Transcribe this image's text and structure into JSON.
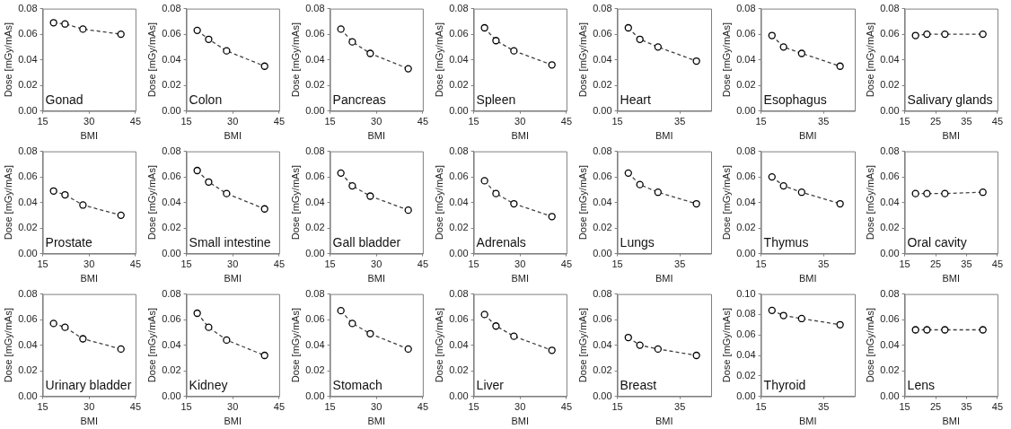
{
  "chart_data": [
    {
      "type": "line",
      "annotations": [
        "Gonad"
      ],
      "xlabel": "BMI",
      "ylabel": "Dose [mGy/mAs]",
      "x": [
        18.5,
        22.2,
        28,
        40.3
      ],
      "values": [
        0.069,
        0.068,
        0.064,
        0.06
      ],
      "color": "#404040",
      "xlim": [
        15,
        45
      ],
      "xticks": [
        15,
        30,
        45
      ],
      "ylim": [
        0,
        0.08
      ],
      "yticks": [
        {
          "value": 0,
          "label": "0.00"
        },
        {
          "value": 0.02,
          "label": "0.02"
        },
        {
          "value": 0.04,
          "label": "0.04"
        },
        {
          "value": 0.06,
          "label": "0.06"
        },
        {
          "value": 0.08,
          "label": "0.08"
        }
      ],
      "marker": "circle",
      "line_style": "dashed",
      "grid": false,
      "legend": false
    },
    {
      "type": "line",
      "annotations": [
        "Colon"
      ],
      "xlabel": "BMI",
      "ylabel": "Dose [mGy/mAs]",
      "x": [
        18.5,
        22.2,
        28,
        40.3
      ],
      "values": [
        0.063,
        0.056,
        0.047,
        0.035
      ],
      "color": "#404040",
      "xlim": [
        15,
        45
      ],
      "xticks": [
        15,
        30,
        45
      ],
      "ylim": [
        0,
        0.08
      ],
      "yticks": [
        {
          "value": 0,
          "label": "0.00"
        },
        {
          "value": 0.02,
          "label": "0.02"
        },
        {
          "value": 0.04,
          "label": "0.04"
        },
        {
          "value": 0.06,
          "label": "0.06"
        },
        {
          "value": 0.08,
          "label": "0.08"
        }
      ],
      "marker": "circle",
      "line_style": "dashed",
      "grid": false,
      "legend": false
    },
    {
      "type": "line",
      "annotations": [
        "Pancreas"
      ],
      "xlabel": "BMI",
      "ylabel": "Dose [mGy/mAs]",
      "x": [
        18.5,
        22.2,
        28,
        40.3
      ],
      "values": [
        0.064,
        0.054,
        0.045,
        0.033
      ],
      "color": "#404040",
      "xlim": [
        15,
        45
      ],
      "xticks": [
        15,
        30,
        45
      ],
      "ylim": [
        0,
        0.08
      ],
      "yticks": [
        {
          "value": 0,
          "label": "0.00"
        },
        {
          "value": 0.02,
          "label": "0.02"
        },
        {
          "value": 0.04,
          "label": "0.04"
        },
        {
          "value": 0.06,
          "label": "0.06"
        },
        {
          "value": 0.08,
          "label": "0.08"
        }
      ],
      "marker": "circle",
      "line_style": "dashed",
      "grid": false,
      "legend": false
    },
    {
      "type": "line",
      "annotations": [
        "Spleen"
      ],
      "xlabel": "BMI",
      "ylabel": "Dose [mGy/mAs]",
      "x": [
        18.5,
        22.2,
        28,
        40.3
      ],
      "values": [
        0.065,
        0.055,
        0.047,
        0.036
      ],
      "color": "#404040",
      "xlim": [
        15,
        45
      ],
      "xticks": [
        15,
        30,
        45
      ],
      "ylim": [
        0,
        0.08
      ],
      "yticks": [
        {
          "value": 0,
          "label": "0.00"
        },
        {
          "value": 0.02,
          "label": "0.02"
        },
        {
          "value": 0.04,
          "label": "0.04"
        },
        {
          "value": 0.06,
          "label": "0.06"
        },
        {
          "value": 0.08,
          "label": "0.08"
        }
      ],
      "marker": "circle",
      "line_style": "dashed",
      "grid": false,
      "legend": false
    },
    {
      "type": "line",
      "annotations": [
        "Heart"
      ],
      "xlabel": "BMI",
      "ylabel": "Dose [mGy/mAs]",
      "x": [
        18.5,
        22.2,
        28,
        40.3
      ],
      "values": [
        0.065,
        0.056,
        0.05,
        0.039
      ],
      "color": "#404040",
      "xlim": [
        15,
        45
      ],
      "xticks": [
        15,
        35
      ],
      "ylim": [
        0,
        0.08
      ],
      "yticks": [
        {
          "value": 0,
          "label": "0.00"
        },
        {
          "value": 0.02,
          "label": "0.02"
        },
        {
          "value": 0.04,
          "label": "0.04"
        },
        {
          "value": 0.06,
          "label": "0.06"
        },
        {
          "value": 0.08,
          "label": "0.08"
        }
      ],
      "marker": "circle",
      "line_style": "dashed",
      "grid": false,
      "legend": false
    },
    {
      "type": "line",
      "annotations": [
        "Esophagus"
      ],
      "xlabel": "BMI",
      "ylabel": "Dose [mGy/mAs]",
      "x": [
        18.5,
        22.2,
        28,
        40.3
      ],
      "values": [
        0.059,
        0.05,
        0.045,
        0.035
      ],
      "color": "#404040",
      "xlim": [
        15,
        45
      ],
      "xticks": [
        15,
        35
      ],
      "ylim": [
        0,
        0.08
      ],
      "yticks": [
        {
          "value": 0,
          "label": "0.00"
        },
        {
          "value": 0.02,
          "label": "0.02"
        },
        {
          "value": 0.04,
          "label": "0.04"
        },
        {
          "value": 0.06,
          "label": "0.06"
        },
        {
          "value": 0.08,
          "label": "0.08"
        }
      ],
      "marker": "circle",
      "line_style": "dashed",
      "grid": false,
      "legend": false
    },
    {
      "type": "line",
      "annotations": [
        "Salivary glands"
      ],
      "xlabel": "BMI",
      "ylabel": "Dose [mGy/mAs]",
      "x": [
        18.5,
        22.2,
        28,
        40.3
      ],
      "values": [
        0.059,
        0.06,
        0.06,
        0.06
      ],
      "color": "#404040",
      "xlim": [
        15,
        45
      ],
      "xticks": [
        15,
        25,
        35,
        45
      ],
      "ylim": [
        0,
        0.08
      ],
      "yticks": [
        {
          "value": 0,
          "label": "0.00"
        },
        {
          "value": 0.02,
          "label": "0.02"
        },
        {
          "value": 0.04,
          "label": "0.04"
        },
        {
          "value": 0.06,
          "label": "0.06"
        },
        {
          "value": 0.08,
          "label": "0.08"
        }
      ],
      "marker": "circle",
      "line_style": "dashed",
      "grid": false,
      "legend": false
    },
    {
      "type": "line",
      "annotations": [
        "Prostate"
      ],
      "xlabel": "BMI",
      "ylabel": "Dose [mGy/mAs]",
      "x": [
        18.5,
        22.2,
        28,
        40.3
      ],
      "values": [
        0.049,
        0.046,
        0.038,
        0.03
      ],
      "color": "#404040",
      "xlim": [
        15,
        45
      ],
      "xticks": [
        15,
        30,
        45
      ],
      "ylim": [
        0,
        0.08
      ],
      "yticks": [
        {
          "value": 0,
          "label": "0.00"
        },
        {
          "value": 0.02,
          "label": "0.02"
        },
        {
          "value": 0.04,
          "label": "0.04"
        },
        {
          "value": 0.06,
          "label": "0.06"
        },
        {
          "value": 0.08,
          "label": "0.08"
        }
      ],
      "marker": "circle",
      "line_style": "dashed",
      "grid": false,
      "legend": false
    },
    {
      "type": "line",
      "annotations": [
        "Small intestine"
      ],
      "xlabel": "BMI",
      "ylabel": "Dose [mGy/mAs]",
      "x": [
        18.5,
        22.2,
        28,
        40.3
      ],
      "values": [
        0.065,
        0.056,
        0.047,
        0.035
      ],
      "color": "#404040",
      "xlim": [
        15,
        45
      ],
      "xticks": [
        15,
        30,
        45
      ],
      "ylim": [
        0,
        0.08
      ],
      "yticks": [
        {
          "value": 0,
          "label": "0.00"
        },
        {
          "value": 0.02,
          "label": "0.02"
        },
        {
          "value": 0.04,
          "label": "0.04"
        },
        {
          "value": 0.06,
          "label": "0.06"
        },
        {
          "value": 0.08,
          "label": "0.08"
        }
      ],
      "marker": "circle",
      "line_style": "dashed",
      "grid": false,
      "legend": false
    },
    {
      "type": "line",
      "annotations": [
        "Gall bladder"
      ],
      "xlabel": "BMI",
      "ylabel": "Dose [mGy/mAs]",
      "x": [
        18.5,
        22.2,
        28,
        40.3
      ],
      "values": [
        0.063,
        0.053,
        0.045,
        0.034
      ],
      "color": "#404040",
      "xlim": [
        15,
        45
      ],
      "xticks": [
        15,
        30,
        45
      ],
      "ylim": [
        0,
        0.08
      ],
      "yticks": [
        {
          "value": 0,
          "label": "0.00"
        },
        {
          "value": 0.02,
          "label": "0.02"
        },
        {
          "value": 0.04,
          "label": "0.04"
        },
        {
          "value": 0.06,
          "label": "0.06"
        },
        {
          "value": 0.08,
          "label": "0.08"
        }
      ],
      "marker": "circle",
      "line_style": "dashed",
      "grid": false,
      "legend": false
    },
    {
      "type": "line",
      "annotations": [
        "Adrenals"
      ],
      "xlabel": "BMI",
      "ylabel": "Dose [mGy/mAs]",
      "x": [
        18.5,
        22.2,
        28,
        40.3
      ],
      "values": [
        0.057,
        0.047,
        0.039,
        0.029
      ],
      "color": "#404040",
      "xlim": [
        15,
        45
      ],
      "xticks": [
        15,
        30,
        45
      ],
      "ylim": [
        0,
        0.08
      ],
      "yticks": [
        {
          "value": 0,
          "label": "0.00"
        },
        {
          "value": 0.02,
          "label": "0.02"
        },
        {
          "value": 0.04,
          "label": "0.04"
        },
        {
          "value": 0.06,
          "label": "0.06"
        },
        {
          "value": 0.08,
          "label": "0.08"
        }
      ],
      "marker": "circle",
      "line_style": "dashed",
      "grid": false,
      "legend": false
    },
    {
      "type": "line",
      "annotations": [
        "Lungs"
      ],
      "xlabel": "BMI",
      "ylabel": "Dose [mGy/mAs]",
      "x": [
        18.5,
        22.2,
        28,
        40.3
      ],
      "values": [
        0.063,
        0.054,
        0.048,
        0.039
      ],
      "color": "#404040",
      "xlim": [
        15,
        45
      ],
      "xticks": [
        15,
        35
      ],
      "ylim": [
        0,
        0.08
      ],
      "yticks": [
        {
          "value": 0,
          "label": "0.00"
        },
        {
          "value": 0.02,
          "label": "0.02"
        },
        {
          "value": 0.04,
          "label": "0.04"
        },
        {
          "value": 0.06,
          "label": "0.06"
        },
        {
          "value": 0.08,
          "label": "0.08"
        }
      ],
      "marker": "circle",
      "line_style": "dashed",
      "grid": false,
      "legend": false
    },
    {
      "type": "line",
      "annotations": [
        "Thymus"
      ],
      "xlabel": "BMI",
      "ylabel": "Dose [mGy/mAs]",
      "x": [
        18.5,
        22.2,
        28,
        40.3
      ],
      "values": [
        0.06,
        0.053,
        0.048,
        0.039
      ],
      "color": "#404040",
      "xlim": [
        15,
        45
      ],
      "xticks": [
        15,
        35
      ],
      "ylim": [
        0,
        0.08
      ],
      "yticks": [
        {
          "value": 0,
          "label": "0.00"
        },
        {
          "value": 0.02,
          "label": "0.02"
        },
        {
          "value": 0.04,
          "label": "0.04"
        },
        {
          "value": 0.06,
          "label": "0.06"
        },
        {
          "value": 0.08,
          "label": "0.08"
        }
      ],
      "marker": "circle",
      "line_style": "dashed",
      "grid": false,
      "legend": false
    },
    {
      "type": "line",
      "annotations": [
        "Oral cavity"
      ],
      "xlabel": "BMI",
      "ylabel": "Dose [mGy/mAs]",
      "x": [
        18.5,
        22.2,
        28,
        40.3
      ],
      "values": [
        0.047,
        0.047,
        0.047,
        0.048
      ],
      "color": "#404040",
      "xlim": [
        15,
        45
      ],
      "xticks": [
        15,
        25,
        35,
        45
      ],
      "ylim": [
        0,
        0.08
      ],
      "yticks": [
        {
          "value": 0,
          "label": "0.00"
        },
        {
          "value": 0.02,
          "label": "0.02"
        },
        {
          "value": 0.04,
          "label": "0.04"
        },
        {
          "value": 0.06,
          "label": "0.06"
        },
        {
          "value": 0.08,
          "label": "0.08"
        }
      ],
      "marker": "circle",
      "line_style": "dashed",
      "grid": false,
      "legend": false
    },
    {
      "type": "line",
      "annotations": [
        "Urinary bladder"
      ],
      "xlabel": "BMI",
      "ylabel": "Dose [mGy/mAs]",
      "x": [
        18.5,
        22.2,
        28,
        40.3
      ],
      "values": [
        0.057,
        0.054,
        0.045,
        0.037
      ],
      "color": "#404040",
      "xlim": [
        15,
        45
      ],
      "xticks": [
        15,
        30,
        45
      ],
      "ylim": [
        0,
        0.08
      ],
      "yticks": [
        {
          "value": 0,
          "label": "0.00"
        },
        {
          "value": 0.02,
          "label": "0.02"
        },
        {
          "value": 0.04,
          "label": "0.04"
        },
        {
          "value": 0.06,
          "label": "0.06"
        },
        {
          "value": 0.08,
          "label": "0.08"
        }
      ],
      "marker": "circle",
      "line_style": "dashed",
      "grid": false,
      "legend": false
    },
    {
      "type": "line",
      "annotations": [
        "Kidney"
      ],
      "xlabel": "BMI",
      "ylabel": "Dose [mGy/mAs]",
      "x": [
        18.5,
        22.2,
        28,
        40.3
      ],
      "values": [
        0.065,
        0.054,
        0.044,
        0.032
      ],
      "color": "#404040",
      "xlim": [
        15,
        45
      ],
      "xticks": [
        15,
        30,
        45
      ],
      "ylim": [
        0,
        0.08
      ],
      "yticks": [
        {
          "value": 0,
          "label": "0.00"
        },
        {
          "value": 0.02,
          "label": "0.02"
        },
        {
          "value": 0.04,
          "label": "0.04"
        },
        {
          "value": 0.06,
          "label": "0.06"
        },
        {
          "value": 0.08,
          "label": "0.08"
        }
      ],
      "marker": "circle",
      "line_style": "dashed",
      "grid": false,
      "legend": false
    },
    {
      "type": "line",
      "annotations": [
        "Stomach"
      ],
      "xlabel": "BMI",
      "ylabel": "Dose [mGy/mAs]",
      "x": [
        18.5,
        22.2,
        28,
        40.3
      ],
      "values": [
        0.067,
        0.057,
        0.049,
        0.037
      ],
      "color": "#404040",
      "xlim": [
        15,
        45
      ],
      "xticks": [
        15,
        30,
        45
      ],
      "ylim": [
        0,
        0.08
      ],
      "yticks": [
        {
          "value": 0,
          "label": "0.00"
        },
        {
          "value": 0.02,
          "label": "0.02"
        },
        {
          "value": 0.04,
          "label": "0.04"
        },
        {
          "value": 0.06,
          "label": "0.06"
        },
        {
          "value": 0.08,
          "label": "0.08"
        }
      ],
      "marker": "circle",
      "line_style": "dashed",
      "grid": false,
      "legend": false
    },
    {
      "type": "line",
      "annotations": [
        "Liver"
      ],
      "xlabel": "BMI",
      "ylabel": "Dose [mGy/mAs]",
      "x": [
        18.5,
        22.2,
        28,
        40.3
      ],
      "values": [
        0.064,
        0.055,
        0.047,
        0.036
      ],
      "color": "#404040",
      "xlim": [
        15,
        45
      ],
      "xticks": [
        15,
        30,
        45
      ],
      "ylim": [
        0,
        0.08
      ],
      "yticks": [
        {
          "value": 0,
          "label": "0.00"
        },
        {
          "value": 0.02,
          "label": "0.02"
        },
        {
          "value": 0.04,
          "label": "0.04"
        },
        {
          "value": 0.06,
          "label": "0.06"
        },
        {
          "value": 0.08,
          "label": "0.08"
        }
      ],
      "marker": "circle",
      "line_style": "dashed",
      "grid": false,
      "legend": false
    },
    {
      "type": "line",
      "annotations": [
        "Breast"
      ],
      "xlabel": "BMI",
      "ylabel": "Dose [mGy/mAs]",
      "x": [
        18.5,
        22.2,
        28,
        40.3
      ],
      "values": [
        0.046,
        0.04,
        0.037,
        0.032
      ],
      "color": "#404040",
      "xlim": [
        15,
        45
      ],
      "xticks": [
        15,
        35
      ],
      "ylim": [
        0,
        0.08
      ],
      "yticks": [
        {
          "value": 0,
          "label": "0.00"
        },
        {
          "value": 0.02,
          "label": "0.02"
        },
        {
          "value": 0.04,
          "label": "0.04"
        },
        {
          "value": 0.06,
          "label": "0.06"
        },
        {
          "value": 0.08,
          "label": "0.08"
        }
      ],
      "marker": "circle",
      "line_style": "dashed",
      "grid": false,
      "legend": false
    },
    {
      "type": "line",
      "annotations": [
        "Thyroid"
      ],
      "xlabel": "BMI",
      "ylabel": "Dose [mGy/mAs]",
      "x": [
        18.5,
        22.2,
        28,
        40.3
      ],
      "values": [
        0.084,
        0.079,
        0.076,
        0.07
      ],
      "color": "#404040",
      "xlim": [
        15,
        45
      ],
      "xticks": [
        15,
        35
      ],
      "ylim": [
        0,
        0.1
      ],
      "yticks": [
        {
          "value": 0,
          "label": "0.00"
        },
        {
          "value": 0.02,
          "label": "0.02"
        },
        {
          "value": 0.04,
          "label": "0.04"
        },
        {
          "value": 0.06,
          "label": "0.06"
        },
        {
          "value": 0.08,
          "label": "0.08"
        },
        {
          "value": 0.1,
          "label": "0.10"
        }
      ],
      "marker": "circle",
      "line_style": "dashed",
      "grid": false,
      "legend": false
    },
    {
      "type": "line",
      "annotations": [
        "Lens"
      ],
      "xlabel": "BMI",
      "ylabel": "Dose [mGy/mAs]",
      "x": [
        18.5,
        22.2,
        28,
        40.3
      ],
      "values": [
        0.052,
        0.052,
        0.052,
        0.052
      ],
      "color": "#404040",
      "xlim": [
        15,
        45
      ],
      "xticks": [
        15,
        25,
        35,
        45
      ],
      "ylim": [
        0,
        0.08
      ],
      "yticks": [
        {
          "value": 0,
          "label": "0.00"
        },
        {
          "value": 0.02,
          "label": "0.02"
        },
        {
          "value": 0.04,
          "label": "0.04"
        },
        {
          "value": 0.06,
          "label": "0.06"
        },
        {
          "value": 0.08,
          "label": "0.08"
        }
      ],
      "marker": "circle",
      "line_style": "dashed",
      "grid": false,
      "legend": false
    }
  ]
}
